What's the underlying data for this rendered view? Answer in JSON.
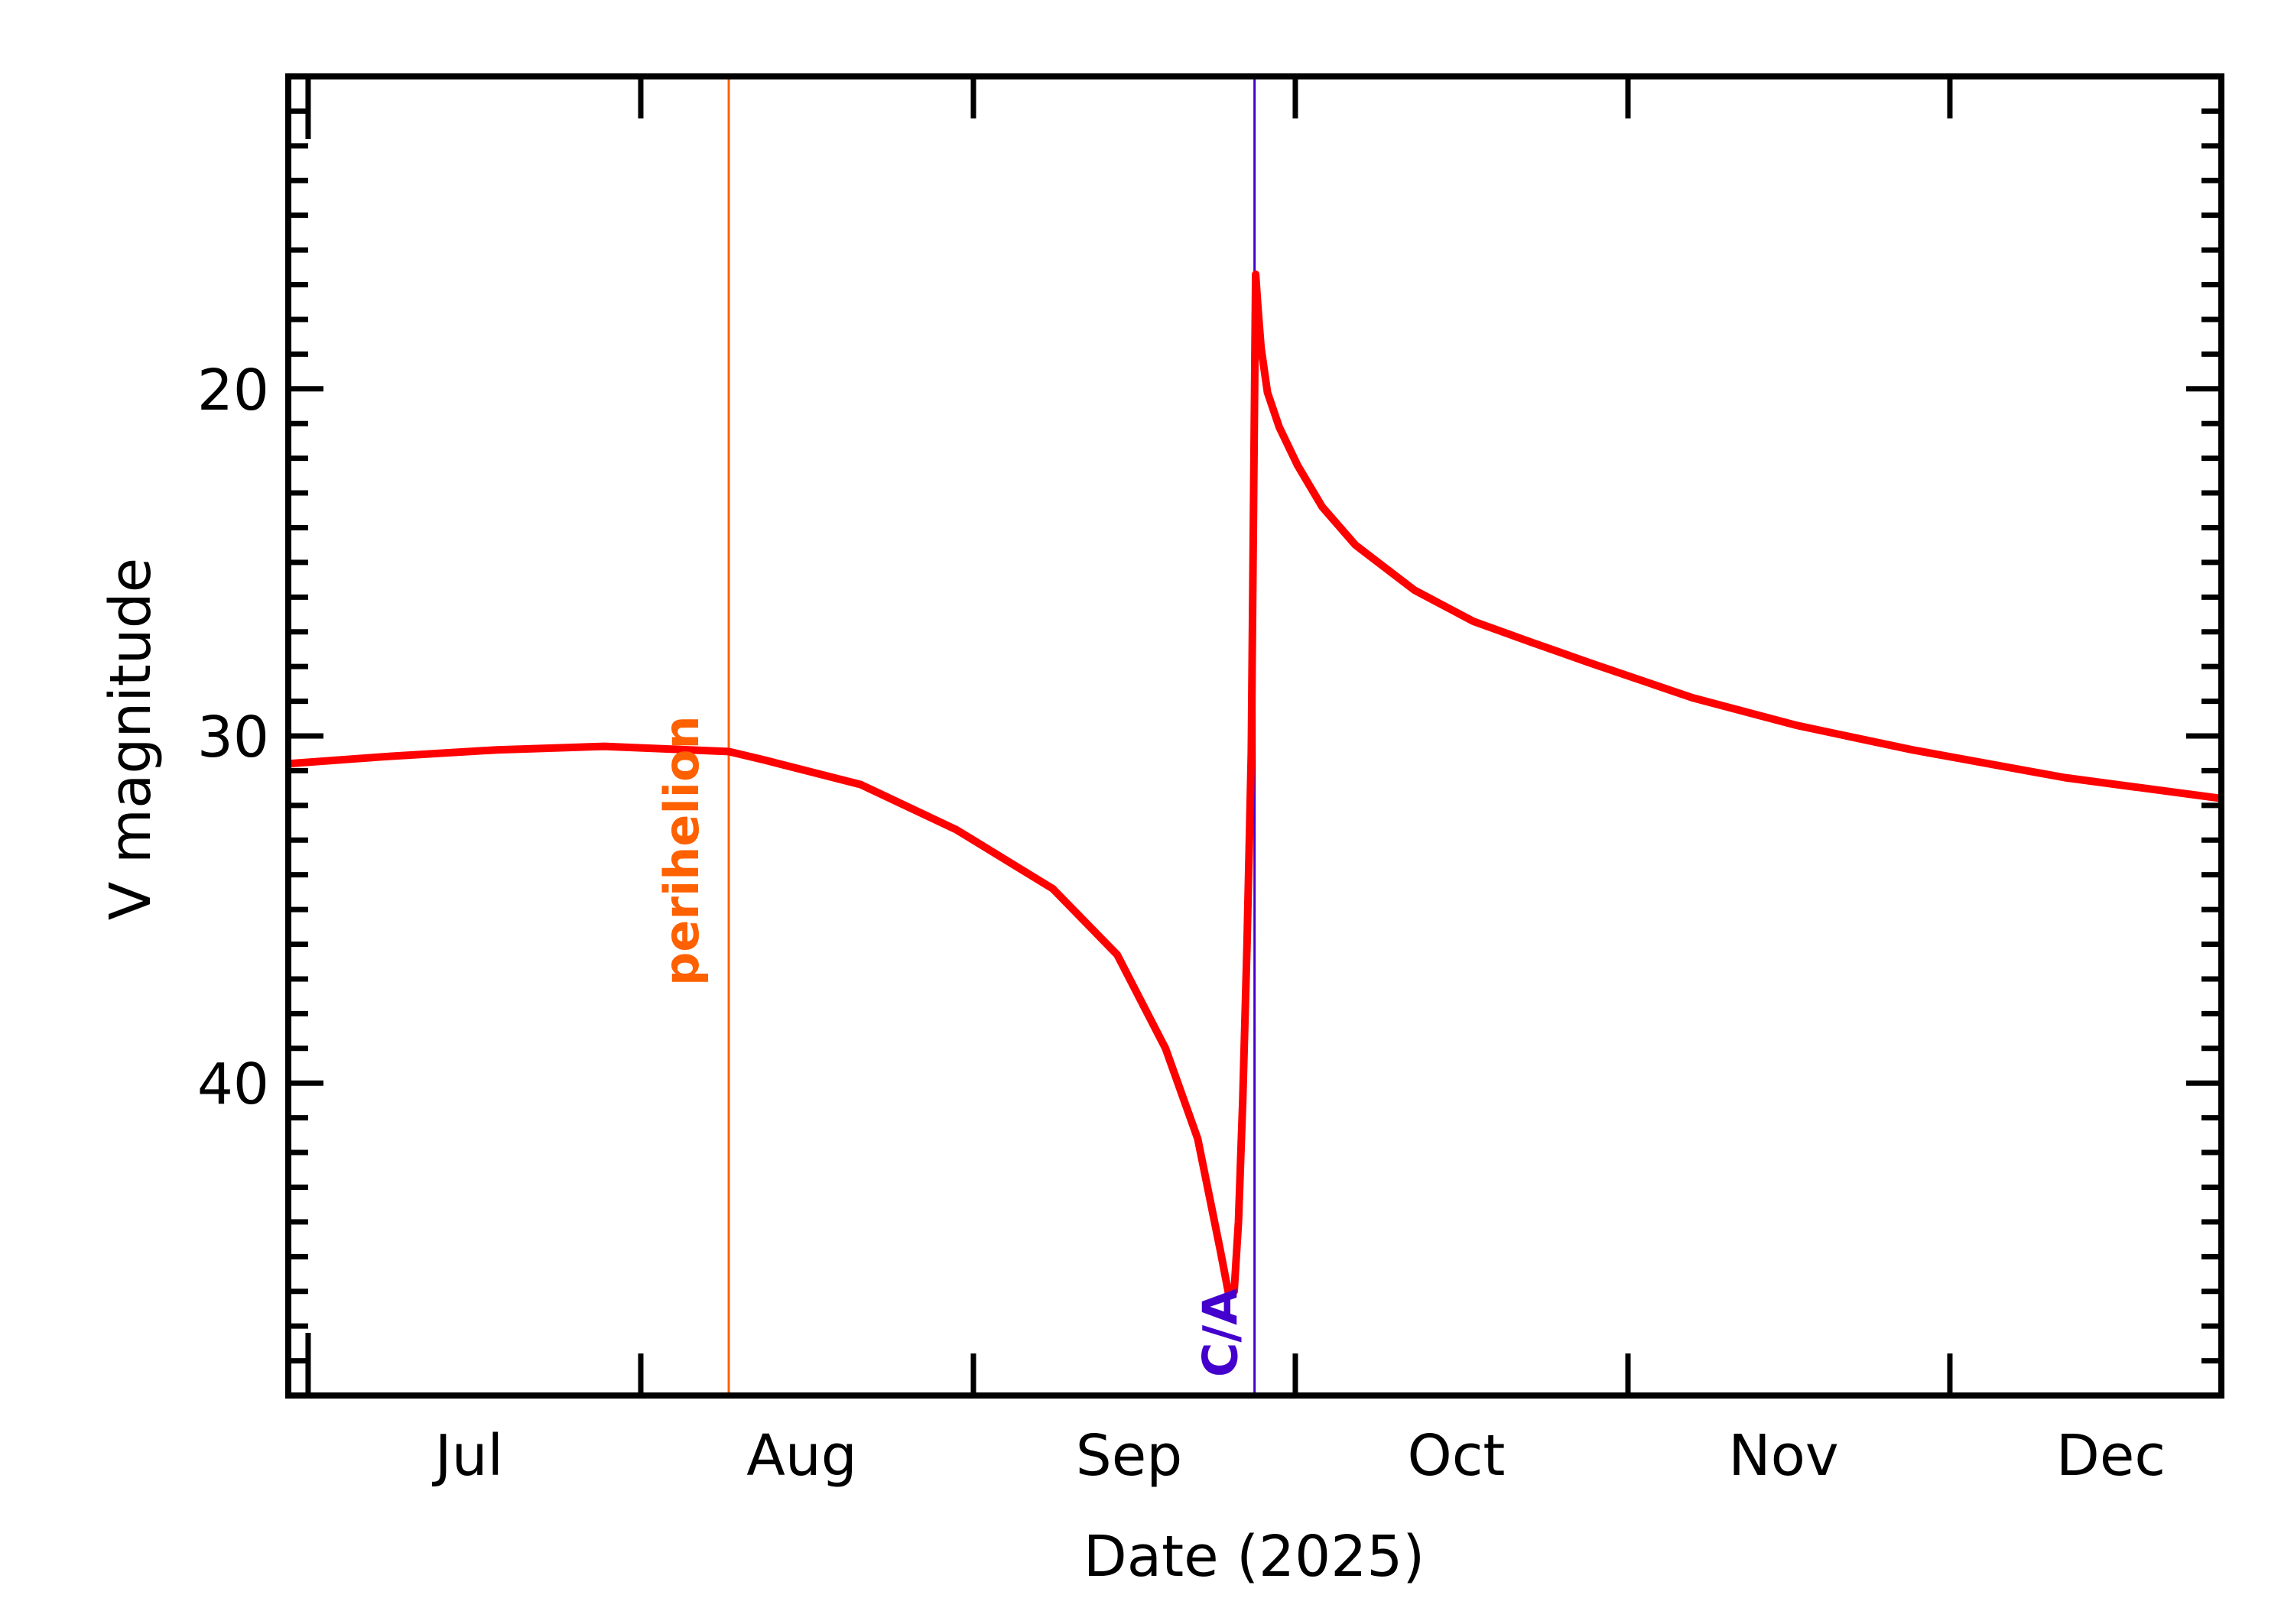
{
  "chart_data": {
    "type": "line",
    "title": "",
    "xlabel": "Date (2025)",
    "ylabel": "V magnitude",
    "x_units": "days since 2025-07-01",
    "xlim": [
      -1.85,
      178.3
    ],
    "ylim": [
      49,
      11
    ],
    "y_inverted": true,
    "grid": false,
    "legend": null,
    "x_month_ticks": [
      {
        "label": "Jul",
        "start_day": 0,
        "end_day": 31
      },
      {
        "label": "Aug",
        "start_day": 31,
        "end_day": 62
      },
      {
        "label": "Sep",
        "start_day": 62,
        "end_day": 92
      },
      {
        "label": "Oct",
        "start_day": 92,
        "end_day": 123
      },
      {
        "label": "Nov",
        "start_day": 123,
        "end_day": 153
      },
      {
        "label": "Dec",
        "start_day": 153,
        "end_day": 184
      }
    ],
    "y_major_ticks": [
      20,
      30,
      40
    ],
    "y_minor_step": 1,
    "series": [
      {
        "name": "V magnitude",
        "color": "#ff0000",
        "x": [
          -1.85,
          6.9,
          17.6,
          27.6,
          39.2,
          42.6,
          51.5,
          60.4,
          69.4,
          75.4,
          79.9,
          82.9,
          85.0,
          85.8,
          86.3,
          86.7,
          87.1,
          87.5,
          87.9,
          88.15,
          88.3,
          88.5,
          88.8,
          89.4,
          90.5,
          92.2,
          94.5,
          97.6,
          103.1,
          108.6,
          114.0,
          119.5,
          129.0,
          138.8,
          149.5,
          163.7,
          178.3
        ],
        "y": [
          30.8,
          30.6,
          30.4,
          30.3,
          30.45,
          30.7,
          31.4,
          32.7,
          34.4,
          36.3,
          39.0,
          41.6,
          44.8,
          46.1,
          46.0,
          44.0,
          40.5,
          36.0,
          30.5,
          22.0,
          16.7,
          17.6,
          18.8,
          20.1,
          21.1,
          22.2,
          23.4,
          24.5,
          25.8,
          26.7,
          27.3,
          27.9,
          28.9,
          29.7,
          30.4,
          31.2,
          31.8
        ]
      }
    ],
    "annotations": [
      {
        "label": "perihelion",
        "x": 39.2,
        "date": "2025-08-09",
        "color": "#ff6000"
      },
      {
        "label": "C/A",
        "x": 88.2,
        "date": "2025-09-27",
        "color": "#4400cc"
      }
    ]
  },
  "axes": {
    "xlabel": "Date (2025)",
    "ylabel": "V magnitude",
    "y_tick_labels": [
      "20",
      "30",
      "40"
    ],
    "x_tick_labels": [
      "Jul",
      "Aug",
      "Sep",
      "Oct",
      "Nov",
      "Dec"
    ]
  },
  "annotations": {
    "perihelion_label": "perihelion",
    "ca_label": "C/A"
  }
}
